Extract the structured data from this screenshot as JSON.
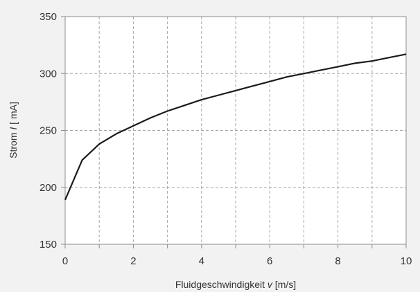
{
  "chart_data": {
    "type": "line",
    "title": "",
    "xlabel_parts": [
      "Fluidgeschwindigkeit ",
      "v",
      " [m/s]"
    ],
    "ylabel_parts": [
      "Strom ",
      "I",
      " [ mA]"
    ],
    "xlim": [
      0,
      10
    ],
    "ylim": [
      150,
      350
    ],
    "x_ticks": [
      0,
      2,
      4,
      6,
      8,
      10
    ],
    "y_ticks": [
      150,
      200,
      250,
      300,
      350
    ],
    "x_grid": [
      1,
      2,
      3,
      4,
      5,
      6,
      7,
      8,
      9
    ],
    "y_grid": [
      200,
      250,
      300
    ],
    "grid": true,
    "legend": "none",
    "series": [
      {
        "x": [
          0,
          0.5,
          1,
          1.5,
          2,
          2.5,
          3,
          3.5,
          4,
          4.5,
          5,
          5.5,
          6,
          6.5,
          7,
          7.5,
          8,
          8.5,
          9,
          9.5,
          10
        ],
        "y": [
          189,
          224,
          238,
          247,
          254,
          261,
          267,
          272,
          277,
          281,
          285,
          289,
          293,
          297,
          300,
          303,
          306,
          309,
          311,
          314,
          317
        ]
      }
    ],
    "colors": {
      "line": "#1a1a1a",
      "grid": "#a6a6a6",
      "frame": "#8c8c8c",
      "plot_bg": "#ffffff",
      "page_bg": "#f2f2f2"
    }
  }
}
